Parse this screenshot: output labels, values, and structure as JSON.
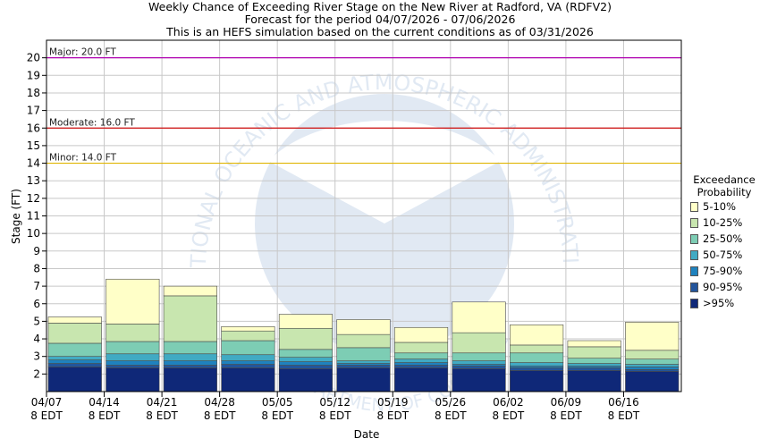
{
  "header": {
    "title": "Weekly Chance of Exceeding River Stage on the New River at Radford, VA (RDFV2)",
    "subtitle": "Forecast for the period 04/07/2026 - 07/06/2026",
    "note": "This is an HEFS simulation based on the current conditions as of 03/31/2026"
  },
  "watermark": {
    "logo": "NOAA",
    "ring_text": "NATIONAL OCEANIC AND ATMOSPHERIC ADMINISTRATION",
    "bottom_text": "U.S. DEPARTMENT OF COMMERCE"
  },
  "legend": {
    "title_line1": "Exceedance",
    "title_line2": "Probability",
    "items": [
      {
        "label": "5-10%",
        "color": "#ffffc8"
      },
      {
        "label": "10-25%",
        "color": "#c8e6af"
      },
      {
        "label": "25-50%",
        "color": "#7dcdb4"
      },
      {
        "label": "50-75%",
        "color": "#41aac3"
      },
      {
        "label": "75-90%",
        "color": "#1f82be"
      },
      {
        "label": "90-95%",
        "color": "#23559b"
      },
      {
        "label": ">95%",
        "color": "#0f2878"
      }
    ]
  },
  "chart_data": {
    "type": "bar",
    "xlabel": "Date",
    "ylabel": "Stage (FT)",
    "ylim": [
      1,
      21
    ],
    "yticks": [
      2,
      3,
      4,
      5,
      6,
      7,
      8,
      9,
      10,
      11,
      12,
      13,
      14,
      15,
      16,
      17,
      18,
      19,
      20
    ],
    "grid": true,
    "x_ticks": [
      {
        "date": "04/07",
        "tz": "8 EDT"
      },
      {
        "date": "04/14",
        "tz": "8 EDT"
      },
      {
        "date": "04/21",
        "tz": "8 EDT"
      },
      {
        "date": "04/28",
        "tz": "8 EDT"
      },
      {
        "date": "05/05",
        "tz": "8 EDT"
      },
      {
        "date": "05/12",
        "tz": "8 EDT"
      },
      {
        "date": "05/19",
        "tz": "8 EDT"
      },
      {
        "date": "05/26",
        "tz": "8 EDT"
      },
      {
        "date": "06/02",
        "tz": "8 EDT"
      },
      {
        "date": "06/09",
        "tz": "8 EDT"
      },
      {
        "date": "06/16",
        "tz": "8 EDT"
      }
    ],
    "flood_stages": [
      {
        "label": "Major: 20.0 FT",
        "value": 20.0,
        "color": "#b000b0"
      },
      {
        "label": "Moderate: 16.0 FT",
        "value": 16.0,
        "color": "#d01010"
      },
      {
        "label": "Minor: 14.0 FT",
        "value": 14.0,
        "color": "#e0b400"
      }
    ],
    "band_boundaries": [
      ">95%",
      "90-95%",
      "75-90%",
      "50-75%",
      "25-50%",
      "10-25%",
      "5-10%"
    ],
    "weeks": [
      {
        "start": "04/07",
        "levels": [
          2.4,
          2.6,
          2.8,
          3.0,
          3.75,
          4.9,
          5.25
        ]
      },
      {
        "start": "04/14",
        "levels": [
          2.35,
          2.5,
          2.75,
          3.15,
          3.85,
          4.85,
          7.4
        ]
      },
      {
        "start": "04/21",
        "levels": [
          2.35,
          2.5,
          2.75,
          3.15,
          3.85,
          6.45,
          7.0
        ]
      },
      {
        "start": "04/28",
        "levels": [
          2.35,
          2.55,
          2.75,
          3.1,
          3.9,
          4.45,
          4.7
        ]
      },
      {
        "start": "05/05",
        "levels": [
          2.3,
          2.5,
          2.7,
          2.95,
          3.4,
          4.6,
          5.4
        ]
      },
      {
        "start": "05/12",
        "levels": [
          2.35,
          2.5,
          2.6,
          2.75,
          3.5,
          4.25,
          5.1
        ]
      },
      {
        "start": "05/19",
        "levels": [
          2.35,
          2.5,
          2.65,
          2.85,
          3.2,
          3.8,
          4.65
        ]
      },
      {
        "start": "05/26",
        "levels": [
          2.3,
          2.45,
          2.55,
          2.75,
          3.2,
          4.35,
          6.1
        ]
      },
      {
        "start": "06/02",
        "levels": [
          2.2,
          2.35,
          2.45,
          2.65,
          3.2,
          3.65,
          4.8
        ]
      },
      {
        "start": "06/09",
        "levels": [
          2.2,
          2.35,
          2.45,
          2.6,
          2.9,
          3.55,
          3.9
        ]
      },
      {
        "start": "06/16",
        "levels": [
          2.15,
          2.25,
          2.4,
          2.55,
          2.85,
          3.35,
          4.95
        ]
      }
    ]
  }
}
